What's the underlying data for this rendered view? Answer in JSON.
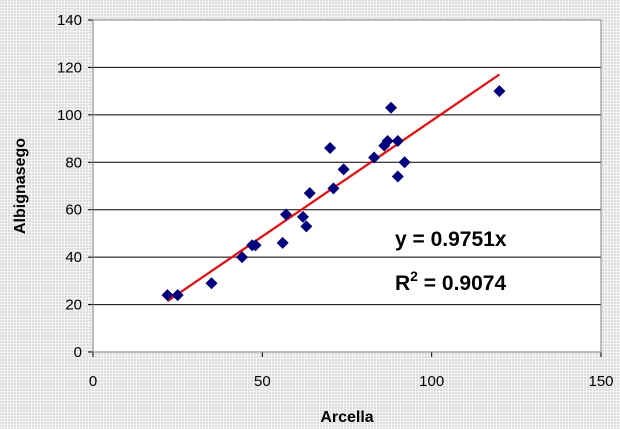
{
  "chart_data": {
    "type": "scatter",
    "xlabel": "Arcella",
    "ylabel": "Albignasego",
    "xlim": [
      0,
      150
    ],
    "ylim": [
      0,
      140
    ],
    "x_ticks": [
      0,
      50,
      100,
      150
    ],
    "y_ticks": [
      0,
      20,
      40,
      60,
      80,
      100,
      120,
      140
    ],
    "grid": "horizontal",
    "series": [
      {
        "marker": "diamond",
        "color": "#000080",
        "points": [
          [
            22,
            24
          ],
          [
            25,
            24
          ],
          [
            35,
            29
          ],
          [
            44,
            40
          ],
          [
            47,
            45
          ],
          [
            48,
            45
          ],
          [
            56,
            46
          ],
          [
            57,
            58
          ],
          [
            62,
            57
          ],
          [
            63,
            53
          ],
          [
            64,
            67
          ],
          [
            70,
            86
          ],
          [
            71,
            69
          ],
          [
            74,
            77
          ],
          [
            83,
            82
          ],
          [
            86,
            87
          ],
          [
            87,
            89
          ],
          [
            88,
            103
          ],
          [
            90,
            74
          ],
          [
            90,
            89
          ],
          [
            92,
            80
          ],
          [
            120,
            110
          ]
        ]
      }
    ],
    "trendline": {
      "type": "linear",
      "slope": 0.9751,
      "intercept": 0,
      "x_range": [
        22,
        120
      ],
      "color": "#ff0000",
      "equation": "y = 0.9751x",
      "r2_label": "R",
      "r2_sup": "2",
      "r2_value": " = 0.9074"
    }
  }
}
